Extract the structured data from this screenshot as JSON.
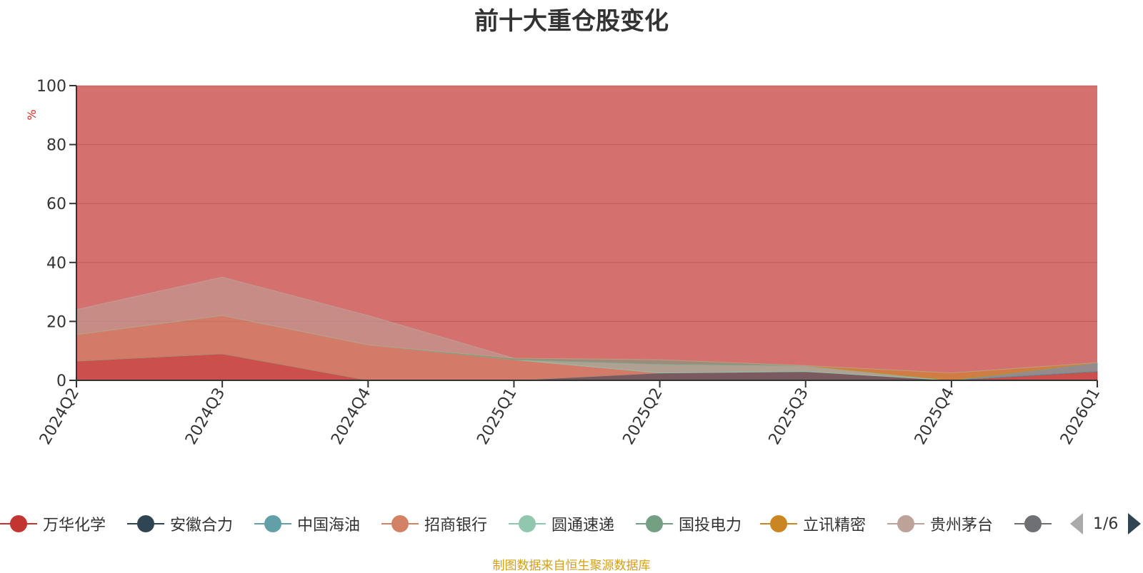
{
  "chart_data": {
    "type": "area",
    "title": "前十大重仓股变化",
    "ylabel": "%",
    "xlabel": "",
    "ylim": [
      0,
      100
    ],
    "yticks": [
      0,
      20,
      40,
      60,
      80,
      100
    ],
    "stacked": true,
    "categories": [
      "2024Q2",
      "2024Q3",
      "2024Q4",
      "2025Q1",
      "2025Q2",
      "2025Q3",
      "2025Q4",
      "2026Q1"
    ],
    "series": [
      {
        "name": "万华化学",
        "color": "#c23531",
        "values": [
          6.5,
          9.0,
          0.0,
          0.0,
          0.0,
          0.0,
          0.0,
          3.0
        ]
      },
      {
        "name": "安徽合力",
        "color": "#2f4554",
        "values": [
          0.0,
          0.0,
          0.0,
          0.0,
          2.5,
          3.0,
          0.0,
          0.0
        ]
      },
      {
        "name": "中国海油",
        "color": "#61a0a8",
        "values": [
          0.0,
          0.0,
          0.0,
          0.0,
          0.0,
          0.0,
          0.0,
          3.0
        ]
      },
      {
        "name": "招商银行",
        "color": "#d48265",
        "values": [
          9.0,
          13.0,
          12.0,
          7.0,
          0.0,
          0.0,
          0.0,
          0.0
        ]
      },
      {
        "name": "圆通速递",
        "color": "#91c7ae",
        "values": [
          0.0,
          0.0,
          0.0,
          0.0,
          3.0,
          2.0,
          0.0,
          0.0
        ]
      },
      {
        "name": "国投电力",
        "color": "#749f83",
        "values": [
          0.0,
          0.0,
          0.0,
          0.5,
          1.5,
          0.0,
          0.0,
          0.0
        ]
      },
      {
        "name": "立讯精密",
        "color": "#ca8622",
        "values": [
          0.0,
          0.0,
          0.0,
          0.0,
          0.0,
          0.0,
          2.5,
          0.0
        ]
      },
      {
        "name": "贵州茅台",
        "color": "#bda29a",
        "values": [
          8.5,
          13.0,
          10.0,
          0.0,
          0.0,
          0.0,
          0.0,
          0.0
        ]
      }
    ],
    "legend_hidden_label": "贵州茅台"
  },
  "legend": {
    "items": [
      {
        "label": "万华化学",
        "color": "#c23531"
      },
      {
        "label": "安徽合力",
        "color": "#2f4554"
      },
      {
        "label": "中国海油",
        "color": "#61a0a8"
      },
      {
        "label": "招商银行",
        "color": "#d48265"
      },
      {
        "label": "圆通速递",
        "color": "#91c7ae"
      },
      {
        "label": "国投电力",
        "color": "#749f83"
      },
      {
        "label": "立讯精密",
        "color": "#ca8622"
      },
      {
        "label": "贵州茅台",
        "color": "#bda29a"
      },
      {
        "label": "",
        "color": "#6e7074"
      }
    ],
    "page_text": "1/6"
  },
  "footer": {
    "note": "制图数据来自恒生聚源数据库"
  }
}
